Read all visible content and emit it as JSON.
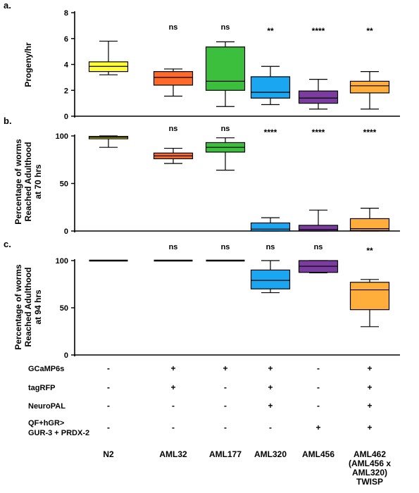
{
  "chart_data": [
    {
      "type": "box",
      "panel_label": "a.",
      "ylabel": "Progeny/hr",
      "ylim": [
        0,
        8
      ],
      "yticks": [
        0,
        2,
        4,
        6,
        8
      ],
      "categories": [
        "N2",
        "AML32",
        "AML177",
        "AML320",
        "AML456",
        "AML462"
      ],
      "colors": [
        "#ffff33",
        "#ff6a2b",
        "#3cbf3c",
        "#1aa6f0",
        "#7a3c9e",
        "#ffae3c"
      ],
      "boxes": [
        {
          "min": 3.2,
          "q1": 3.45,
          "median": 3.85,
          "q3": 4.2,
          "max": 5.8
        },
        {
          "min": 1.55,
          "q1": 2.4,
          "median": 3.0,
          "q3": 3.45,
          "max": 3.65
        },
        {
          "min": 0.75,
          "q1": 2.0,
          "median": 2.7,
          "q3": 5.35,
          "max": 5.75
        },
        {
          "min": 0.9,
          "q1": 1.4,
          "median": 1.85,
          "q3": 3.05,
          "max": 3.85
        },
        {
          "min": 0.55,
          "q1": 1.0,
          "median": 1.4,
          "q3": 1.95,
          "max": 2.85
        },
        {
          "min": 0.55,
          "q1": 1.8,
          "median": 2.35,
          "q3": 2.7,
          "max": 3.45
        }
      ],
      "significance": [
        "",
        "ns",
        "ns",
        "**",
        "****",
        "**"
      ]
    },
    {
      "type": "box",
      "panel_label": "b.",
      "ylabel_lines": [
        "Percentage of worms",
        "Reached Adulthood",
        "at 70 hrs"
      ],
      "ylim": [
        0,
        100
      ],
      "yticks": [
        0,
        50,
        100
      ],
      "categories": [
        "N2",
        "AML32",
        "AML177",
        "AML320",
        "AML456",
        "AML462"
      ],
      "colors": [
        "#ffff33",
        "#ff6a2b",
        "#3cbf3c",
        "#1aa6f0",
        "#7a3c9e",
        "#ffae3c"
      ],
      "boxes": [
        {
          "min": 88,
          "q1": 97,
          "median": 98.5,
          "q3": 99.5,
          "max": 100
        },
        {
          "min": 71,
          "q1": 76,
          "median": 79,
          "q3": 82,
          "max": 87
        },
        {
          "min": 64,
          "q1": 83,
          "median": 88,
          "q3": 93,
          "max": 98
        },
        {
          "min": 0,
          "q1": 0,
          "median": 2,
          "q3": 8.5,
          "max": 14
        },
        {
          "min": 0,
          "q1": 0,
          "median": 1.5,
          "q3": 6,
          "max": 22
        },
        {
          "min": 0,
          "q1": 0.5,
          "median": 2.5,
          "q3": 13,
          "max": 24
        }
      ],
      "significance": [
        "",
        "ns",
        "ns",
        "****",
        "****",
        "****"
      ]
    },
    {
      "type": "box",
      "panel_label": "c.",
      "ylabel_lines": [
        "Percentage of worms",
        "Reached Adulthood",
        "at 94 hrs"
      ],
      "ylim": [
        0,
        100
      ],
      "yticks": [
        0,
        50,
        100
      ],
      "categories": [
        "N2",
        "AML32",
        "AML177",
        "AML320",
        "AML456",
        "AML462"
      ],
      "colors": [
        "#ffff33",
        "#ff6a2b",
        "#3cbf3c",
        "#1aa6f0",
        "#7a3c9e",
        "#ffae3c"
      ],
      "boxes": [
        {
          "min": 100,
          "q1": 100,
          "median": 100,
          "q3": 100,
          "max": 100
        },
        {
          "min": 100,
          "q1": 100,
          "median": 100,
          "q3": 100,
          "max": 100
        },
        {
          "min": 100,
          "q1": 100,
          "median": 100,
          "q3": 100,
          "max": 100
        },
        {
          "min": 66,
          "q1": 70,
          "median": 79,
          "q3": 90,
          "max": 100
        },
        {
          "min": 87,
          "q1": 87.5,
          "median": 94,
          "q3": 100,
          "max": 100
        },
        {
          "min": 30,
          "q1": 48,
          "median": 69,
          "q3": 77,
          "max": 80
        }
      ],
      "significance": [
        "",
        "ns",
        "ns",
        "ns",
        "ns",
        "**"
      ]
    }
  ],
  "genotype_table": {
    "rows": [
      {
        "label_lines": [
          "GCaMP6s"
        ],
        "values": [
          "-",
          "+",
          "+",
          "+",
          "-",
          "+"
        ]
      },
      {
        "label_lines": [
          "tagRFP"
        ],
        "values": [
          "-",
          "+",
          "-",
          "+",
          "-",
          "+"
        ]
      },
      {
        "label_lines": [
          "NeuroPAL"
        ],
        "values": [
          "-",
          "-",
          "-",
          "+",
          "-",
          "+"
        ]
      },
      {
        "label_lines": [
          "QF+hGR>",
          "GUR-3 + PRDX-2"
        ],
        "values": [
          "-",
          "-",
          "-",
          "-",
          "+",
          "+"
        ]
      }
    ],
    "strain_labels": [
      [
        "N2"
      ],
      [
        "AML32"
      ],
      [
        "AML177"
      ],
      [
        "AML320"
      ],
      [
        "AML456"
      ],
      [
        "AML462",
        "(AML456 x",
        "AML320)",
        "TWISP"
      ]
    ]
  }
}
